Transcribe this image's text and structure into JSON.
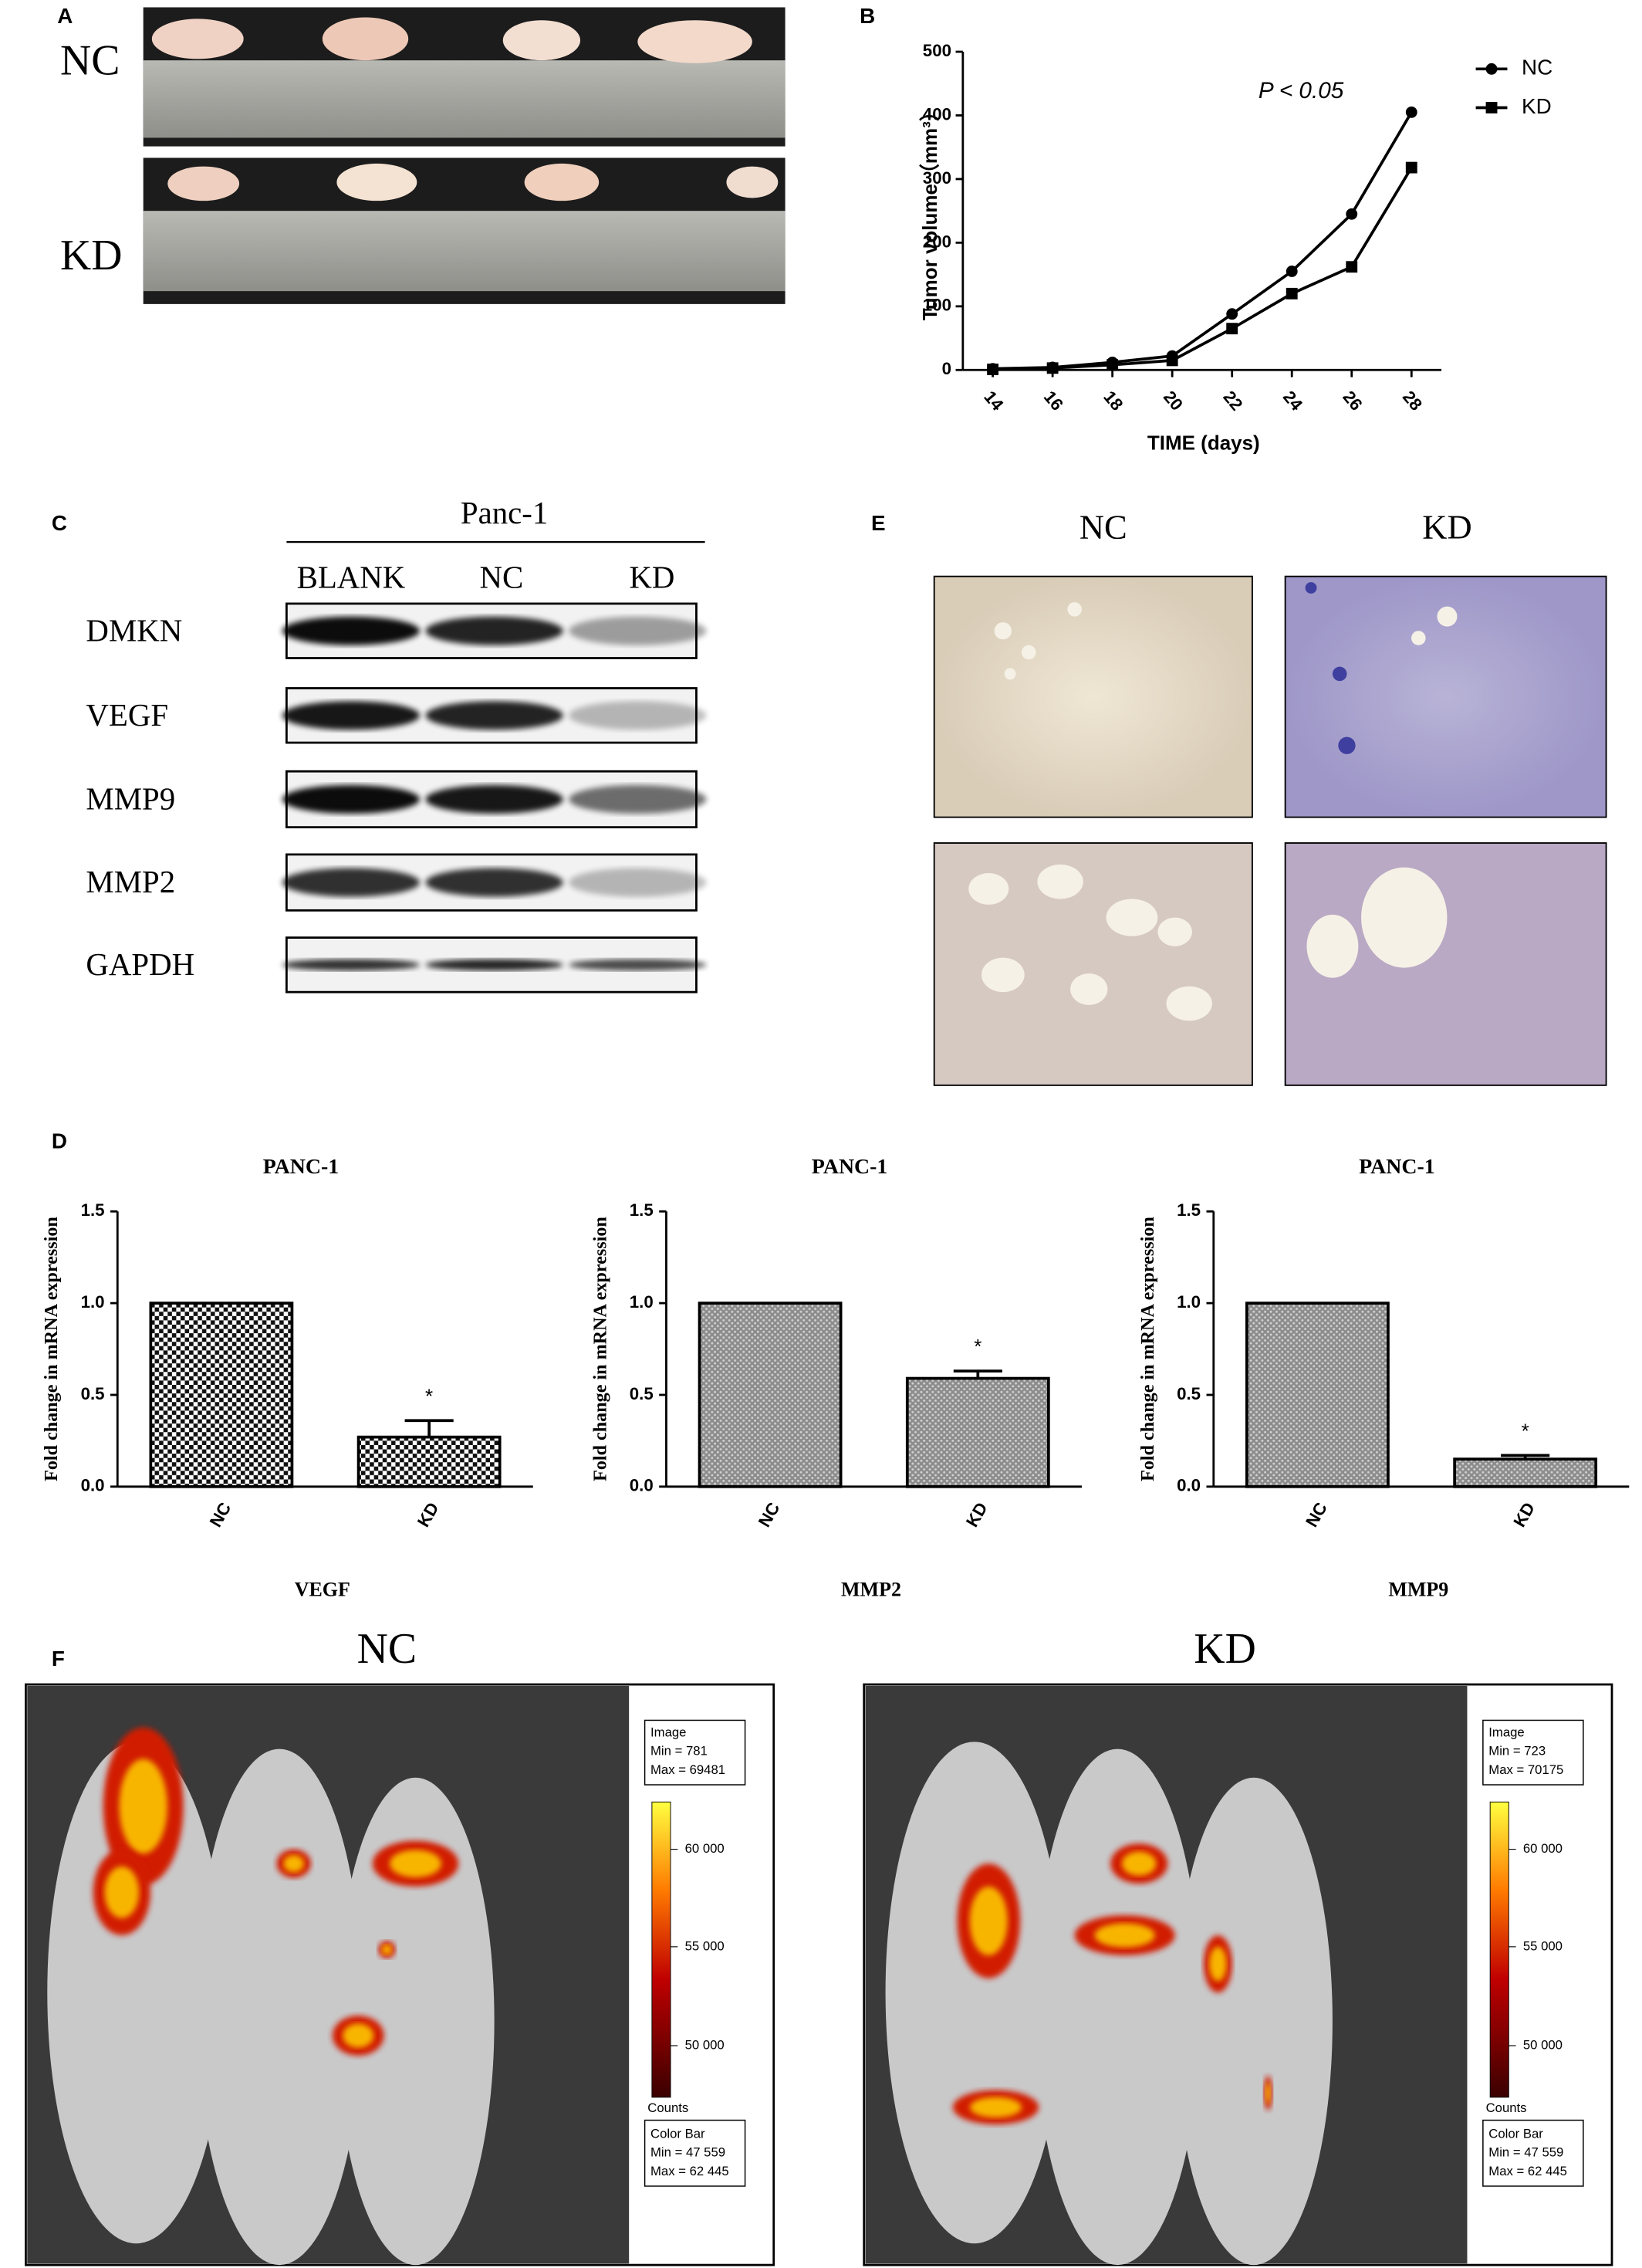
{
  "panels": {
    "A": {
      "label": "A",
      "rows": [
        "NC",
        "KD"
      ]
    },
    "B": {
      "label": "B"
    },
    "C": {
      "label": "C",
      "cell_line": "Panc-1",
      "columns": [
        "BLANK",
        "NC",
        "KD"
      ],
      "proteins": [
        "DMKN",
        "VEGF",
        "MMP9",
        "MMP2",
        "GAPDH"
      ]
    },
    "D": {
      "label": "D"
    },
    "E": {
      "label": "E",
      "columns": [
        "NC",
        "KD"
      ]
    },
    "F": {
      "label": "F",
      "images": [
        {
          "title": "NC",
          "image_label": "Image",
          "min": "Min = 781",
          "max": "Max = 69481",
          "scale": [
            "60 000",
            "55 000",
            "50 000"
          ],
          "unit": "Counts",
          "bar_label": "Color Bar",
          "bar_min": "Min = 47 559",
          "bar_max": "Max = 62 445"
        },
        {
          "title": "KD",
          "image_label": "Image",
          "min": "Min = 723",
          "max": "Max = 70175",
          "scale": [
            "60 000",
            "55 000",
            "50 000"
          ],
          "unit": "Counts",
          "bar_label": "Color Bar",
          "bar_min": "Min = 47 559",
          "bar_max": "Max = 62 445"
        }
      ]
    }
  },
  "chart_data": [
    {
      "type": "line",
      "xlabel": "TIME (days)",
      "ylabel": "Tumor volume（mm³）",
      "annotation": "P < 0.05",
      "x": [
        14,
        16,
        18,
        20,
        22,
        24,
        26,
        28
      ],
      "series": [
        {
          "name": "NC",
          "color": "#000000",
          "marker": "circle",
          "values": [
            2,
            4,
            12,
            22,
            88,
            155,
            245,
            405
          ]
        },
        {
          "name": "KD",
          "color": "#000000",
          "marker": "square",
          "values": [
            1,
            3,
            8,
            15,
            65,
            120,
            162,
            318
          ]
        }
      ],
      "xlim": [
        13,
        29
      ],
      "xticks": [
        14,
        16,
        18,
        20,
        22,
        24,
        26,
        28
      ],
      "ylim": [
        0,
        500
      ],
      "yticks": [
        0,
        100,
        200,
        300,
        400,
        500
      ],
      "legend": "upper right"
    },
    {
      "type": "bar",
      "title": "PANC-1",
      "xlabel": "VEGF",
      "ylabel": "Fold change in mRNA expression",
      "annotation": "*",
      "categories": [
        "NC",
        "KD"
      ],
      "values": [
        1.0,
        0.27
      ],
      "errors": [
        null,
        0.09
      ],
      "pattern": "checker",
      "ylim": [
        0,
        1.5
      ],
      "yticks": [
        {
          "value": 0,
          "label": "0.0"
        },
        {
          "value": 0.5,
          "label": "0.5"
        },
        {
          "value": 1,
          "label": "1.0"
        },
        1.5
      ]
    },
    {
      "type": "bar",
      "title": "PANC-1",
      "xlabel": "MMP2",
      "ylabel": "Fold change in mRNA expression",
      "annotation": "*",
      "categories": [
        "NC",
        "KD"
      ],
      "values": [
        1.0,
        0.59
      ],
      "errors": [
        null,
        0.04
      ],
      "pattern": "dots",
      "ylim": [
        0,
        1.5
      ],
      "yticks": [
        {
          "value": 0,
          "label": "0.0"
        },
        {
          "value": 0.5,
          "label": "0.5"
        },
        {
          "value": 1,
          "label": "1.0"
        },
        1.5
      ]
    },
    {
      "type": "bar",
      "title": "PANC-1",
      "xlabel": "MMP9",
      "ylabel": "Fold change in mRNA expression",
      "annotation": "*",
      "categories": [
        "NC",
        "KD"
      ],
      "values": [
        1.0,
        0.15
      ],
      "errors": [
        null,
        0.02
      ],
      "pattern": "dots",
      "ylim": [
        0,
        1.5
      ],
      "yticks": [
        {
          "value": 0,
          "label": "0.0"
        },
        {
          "value": 0.5,
          "label": "0.5"
        },
        {
          "value": 1,
          "label": "1.0"
        },
        1.5
      ]
    }
  ]
}
